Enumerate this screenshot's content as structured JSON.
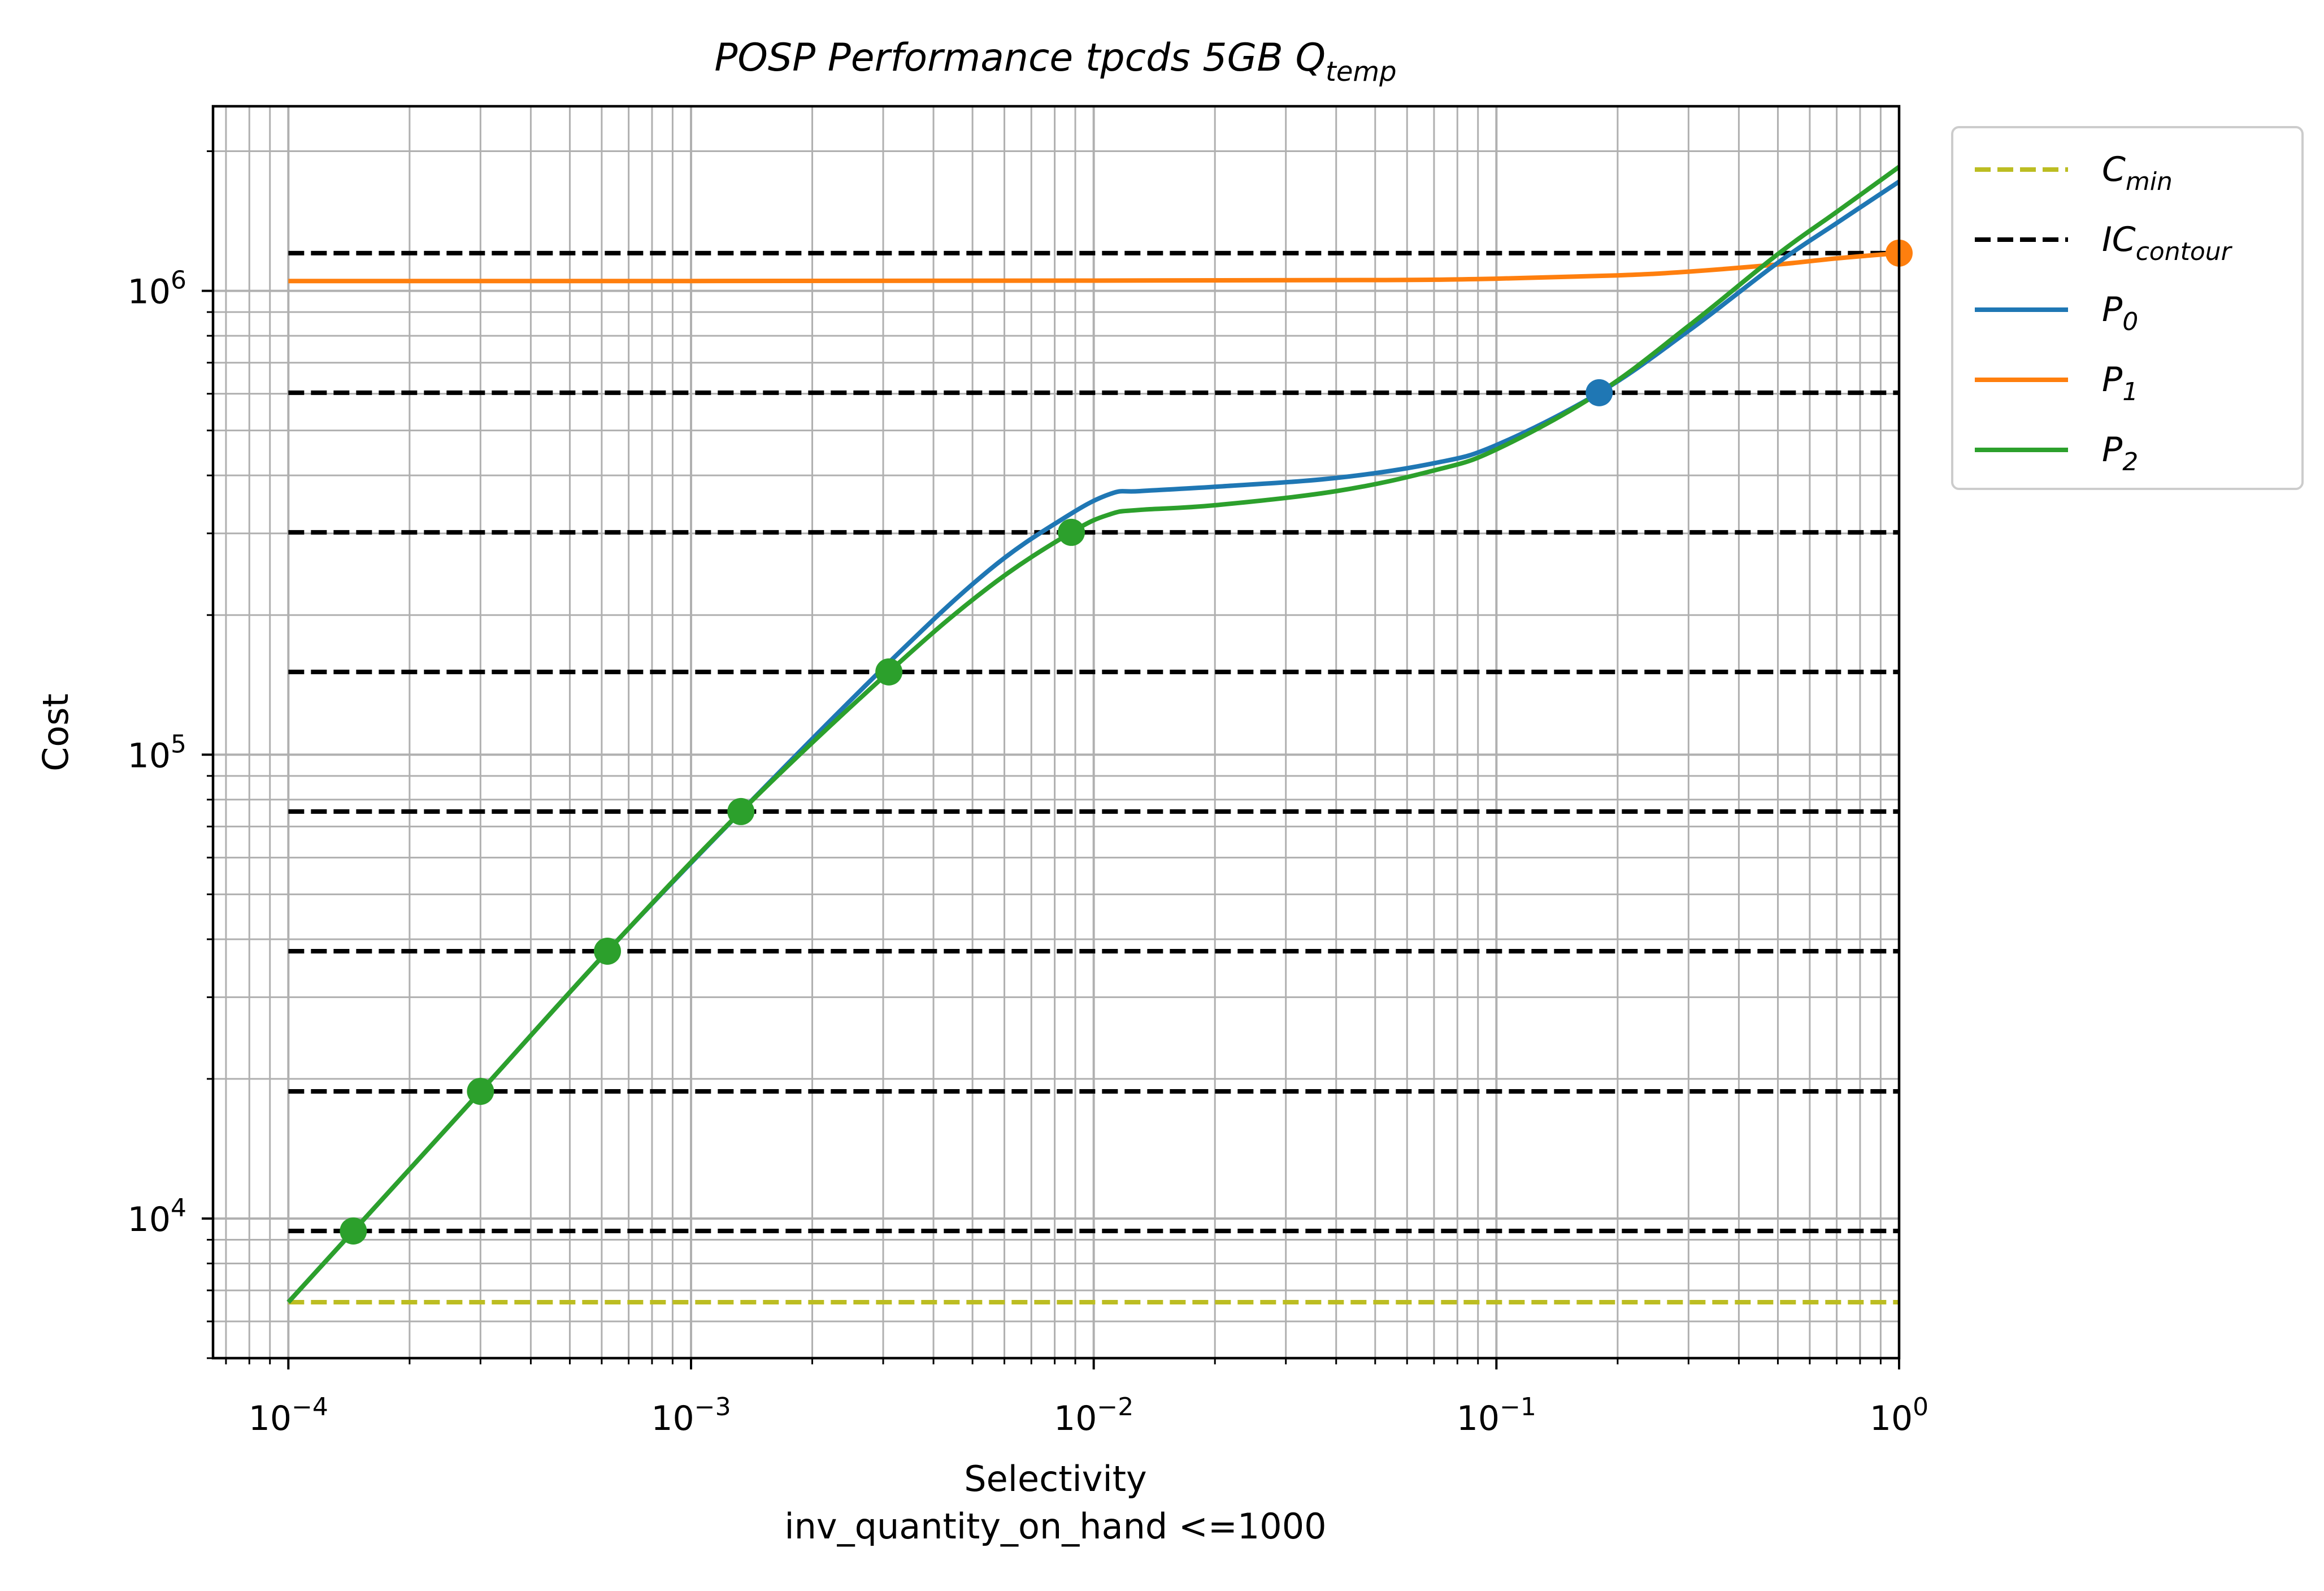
{
  "chart_data": {
    "type": "line",
    "title": {
      "main": "POSP Performance tpcds 5GB Q",
      "sub": "temp"
    },
    "xlabel": "Selectivity",
    "xlabel_line2": "inv_quantity_on_hand <=1000",
    "ylabel": "Cost",
    "x_scale": "log",
    "y_scale": "log",
    "xlim": [
      6.5e-05,
      1
    ],
    "ylim": [
      5000,
      2500000
    ],
    "grid": true,
    "legend_position": "outside-top-right",
    "x_ticks": [
      {
        "value": 0.0001,
        "base": "10",
        "exp": "−4"
      },
      {
        "value": 0.001,
        "base": "10",
        "exp": "−3"
      },
      {
        "value": 0.01,
        "base": "10",
        "exp": "−2"
      },
      {
        "value": 0.1,
        "base": "10",
        "exp": "−1"
      },
      {
        "value": 1,
        "base": "10",
        "exp": "0"
      }
    ],
    "y_ticks": [
      {
        "value": 10000,
        "base": "10",
        "exp": "4"
      },
      {
        "value": 100000,
        "base": "10",
        "exp": "5"
      },
      {
        "value": 1000000,
        "base": "10",
        "exp": "6"
      }
    ],
    "reference_lines": [
      {
        "name": "C_min",
        "label_main": "C",
        "label_sub": "min",
        "color": "#bcbd22",
        "style": "dashed",
        "y": [
          6600
        ]
      },
      {
        "name": "IC_contour",
        "label_main": "IC",
        "label_sub": "contour",
        "color": "#000000",
        "style": "dashed",
        "y": [
          9400,
          18800,
          37700,
          75400,
          150800,
          301500,
          603000,
          1206000
        ]
      }
    ],
    "series": [
      {
        "name": "P_0",
        "label_main": "P",
        "label_sub": "0",
        "color": "#1f77b4",
        "x": [
          0.0001,
          0.000145,
          0.0003,
          0.00062,
          0.00133,
          0.0031,
          0.0055,
          0.0085,
          0.011,
          0.013,
          0.02,
          0.04,
          0.07,
          0.1,
          0.18,
          0.3,
          0.5,
          0.7,
          1.0
        ],
        "y": [
          6600,
          9400,
          18800,
          37700,
          75400,
          158000,
          250000,
          325000,
          365000,
          370000,
          378000,
          395000,
          425000,
          465000,
          603000,
          820000,
          1150000,
          1400000,
          1720000
        ]
      },
      {
        "name": "P_1",
        "label_main": "P",
        "label_sub": "1",
        "color": "#ff7f0e",
        "x": [
          0.0001,
          0.001,
          0.01,
          0.05,
          0.1,
          0.2,
          0.3,
          0.5,
          0.7,
          1.0
        ],
        "y": [
          1050000,
          1050000,
          1052000,
          1055000,
          1062000,
          1080000,
          1100000,
          1140000,
          1175000,
          1206000
        ]
      },
      {
        "name": "P_2",
        "label_main": "P",
        "label_sub": "2",
        "color": "#2ca02c",
        "x": [
          0.0001,
          0.000145,
          0.0003,
          0.00062,
          0.00133,
          0.0031,
          0.0055,
          0.0088,
          0.011,
          0.013,
          0.02,
          0.04,
          0.07,
          0.1,
          0.18,
          0.3,
          0.5,
          0.7,
          1.0
        ],
        "y": [
          6600,
          9400,
          18800,
          37700,
          75400,
          150800,
          230000,
          301500,
          330000,
          337000,
          345000,
          370000,
          410000,
          455000,
          603000,
          840000,
          1200000,
          1480000,
          1850000
        ]
      }
    ],
    "markers": [
      {
        "series": "P_2",
        "color": "#2ca02c",
        "points": [
          [
            0.000145,
            9400
          ],
          [
            0.0003,
            18800
          ],
          [
            0.00062,
            37700
          ],
          [
            0.00133,
            75400
          ],
          [
            0.0031,
            150800
          ],
          [
            0.0088,
            301500
          ]
        ]
      },
      {
        "series": "P_0",
        "color": "#1f77b4",
        "points": [
          [
            0.18,
            603000
          ]
        ]
      },
      {
        "series": "P_1",
        "color": "#ff7f0e",
        "points": [
          [
            1.0,
            1206000
          ]
        ]
      }
    ]
  }
}
